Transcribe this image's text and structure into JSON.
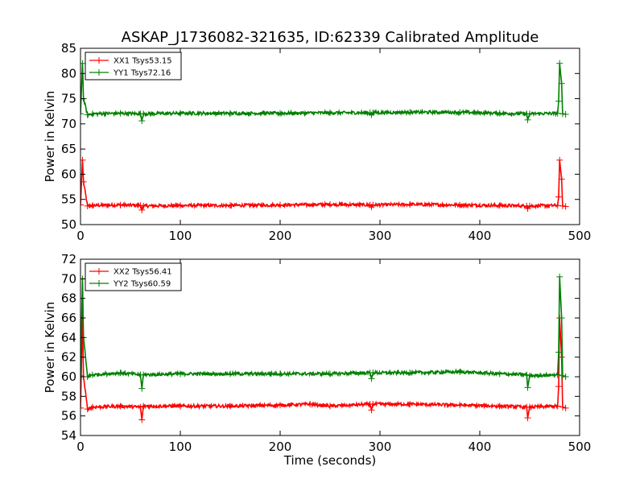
{
  "figure_title": "ASKAP_J1736082-321635, ID:62339 Calibrated Amplitude",
  "chart_data": [
    {
      "type": "line",
      "xlabel": "",
      "ylabel": "Power in Kelvin",
      "xlim": [
        0,
        500
      ],
      "ylim": [
        50,
        85
      ],
      "x_ticks": [
        0,
        100,
        200,
        300,
        400,
        500
      ],
      "y_ticks": [
        50,
        55,
        60,
        65,
        70,
        75,
        80,
        85
      ],
      "grid": false,
      "legend_position": "top-left",
      "series": [
        {
          "name": "XX1 Tsys53.15",
          "color": "#ff0000",
          "x": [
            0,
            2,
            3,
            7,
            12,
            40,
            60,
            61.5,
            63,
            100,
            150,
            200,
            250,
            290,
            291.5,
            293,
            330,
            380,
            420,
            447,
            448,
            450,
            478,
            479,
            480,
            482,
            483,
            486
          ],
          "values": [
            53.9,
            62.8,
            58.5,
            53.7,
            53.8,
            53.9,
            53.8,
            52.9,
            53.7,
            53.8,
            53.8,
            53.9,
            54.0,
            53.9,
            53.5,
            53.9,
            54.0,
            53.9,
            53.8,
            53.7,
            53.2,
            53.7,
            53.8,
            55.5,
            62.8,
            59.0,
            53.7,
            53.6
          ]
        },
        {
          "name": "YY1 Tsys72.16",
          "color": "#008000",
          "x": [
            0,
            2,
            3,
            7,
            12,
            40,
            60,
            61.5,
            63,
            100,
            150,
            200,
            250,
            290,
            291.5,
            293,
            330,
            380,
            420,
            447,
            448,
            450,
            478,
            479,
            480,
            482,
            483,
            486
          ],
          "values": [
            72.0,
            82.0,
            75.0,
            71.8,
            72.0,
            72.1,
            72.0,
            70.6,
            72.0,
            72.1,
            72.1,
            72.1,
            72.2,
            72.2,
            71.8,
            72.2,
            72.3,
            72.3,
            72.1,
            72.0,
            70.8,
            72.0,
            72.1,
            74.5,
            82.0,
            78.0,
            72.0,
            71.9
          ]
        }
      ]
    },
    {
      "type": "line",
      "xlabel": "Time (seconds)",
      "ylabel": "Power in Kelvin",
      "xlim": [
        0,
        500
      ],
      "ylim": [
        54,
        72
      ],
      "x_ticks": [
        0,
        100,
        200,
        300,
        400,
        500
      ],
      "y_ticks": [
        54,
        56,
        58,
        60,
        62,
        64,
        66,
        68,
        70,
        72
      ],
      "grid": false,
      "legend_position": "top-left",
      "series": [
        {
          "name": "XX2 Tsys56.41",
          "color": "#ff0000",
          "x": [
            0,
            2,
            3,
            7,
            12,
            40,
            60,
            61.5,
            63,
            100,
            150,
            200,
            230,
            250,
            290,
            291.5,
            293,
            330,
            380,
            420,
            447,
            448,
            450,
            478,
            479,
            480,
            482,
            483,
            486
          ],
          "values": [
            56.8,
            66.0,
            60.0,
            56.7,
            56.9,
            57.0,
            56.9,
            55.6,
            57.0,
            57.0,
            57.0,
            57.1,
            57.2,
            57.0,
            57.2,
            56.6,
            57.2,
            57.2,
            57.1,
            57.0,
            56.9,
            55.8,
            56.9,
            57.0,
            59.0,
            66.0,
            62.0,
            56.9,
            56.8
          ]
        },
        {
          "name": "YY2 Tsys60.59",
          "color": "#008000",
          "x": [
            0,
            2,
            3,
            7,
            12,
            40,
            60,
            61.5,
            63,
            100,
            150,
            200,
            250,
            290,
            291.5,
            293,
            330,
            380,
            420,
            447,
            448,
            450,
            478,
            479,
            480,
            482,
            483,
            486
          ],
          "values": [
            60.1,
            70.0,
            64.0,
            60.0,
            60.2,
            60.4,
            60.2,
            58.8,
            60.2,
            60.3,
            60.3,
            60.3,
            60.3,
            60.4,
            59.8,
            60.4,
            60.4,
            60.5,
            60.3,
            60.2,
            58.9,
            60.1,
            60.2,
            62.5,
            70.2,
            66.0,
            60.1,
            60.0
          ]
        }
      ]
    }
  ]
}
